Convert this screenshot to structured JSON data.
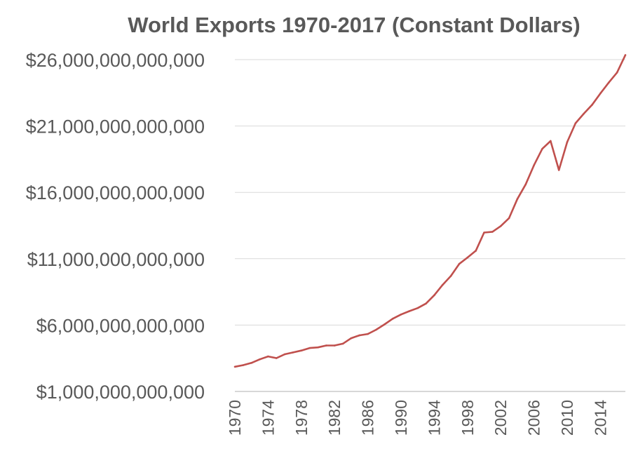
{
  "chart_data": {
    "type": "line",
    "title": "World Exports 1970-2017 (Constant Dollars)",
    "xlabel": "",
    "ylabel": "",
    "grid": true,
    "legend": "none",
    "line_color": "#c0504d",
    "ylim": [
      1000000000000,
      26000000000000
    ],
    "y_ticks": [
      1000000000000,
      6000000000000,
      11000000000000,
      16000000000000,
      21000000000000,
      26000000000000
    ],
    "y_tick_labels": [
      "$1,000,000,000,000",
      "$6,000,000,000,000",
      "$11,000,000,000,000",
      "$16,000,000,000,000",
      "$21,000,000,000,000",
      "$26,000,000,000,000"
    ],
    "x_tick_labels": [
      "1970",
      "1974",
      "1978",
      "1982",
      "1986",
      "1990",
      "1994",
      "1998",
      "2002",
      "2006",
      "2010",
      "2014"
    ],
    "series": [
      {
        "name": "World Exports",
        "x": [
          1970,
          1971,
          1972,
          1973,
          1974,
          1975,
          1976,
          1977,
          1978,
          1979,
          1980,
          1981,
          1982,
          1983,
          1984,
          1985,
          1986,
          1987,
          1988,
          1989,
          1990,
          1991,
          1992,
          1993,
          1994,
          1995,
          1996,
          1997,
          1998,
          1999,
          2000,
          2001,
          2002,
          2003,
          2004,
          2005,
          2006,
          2007,
          2008,
          2009,
          2010,
          2011,
          2012,
          2013,
          2014,
          2015,
          2016,
          2017
        ],
        "values": [
          2860000000000,
          2980000000000,
          3150000000000,
          3420000000000,
          3640000000000,
          3510000000000,
          3800000000000,
          3940000000000,
          4080000000000,
          4270000000000,
          4320000000000,
          4460000000000,
          4460000000000,
          4600000000000,
          5010000000000,
          5230000000000,
          5330000000000,
          5650000000000,
          6050000000000,
          6480000000000,
          6800000000000,
          7050000000000,
          7280000000000,
          7620000000000,
          8250000000000,
          9030000000000,
          9700000000000,
          10610000000000,
          11090000000000,
          11600000000000,
          12970000000000,
          13030000000000,
          13460000000000,
          14060000000000,
          15500000000000,
          16600000000000,
          18040000000000,
          19280000000000,
          19870000000000,
          17680000000000,
          19790000000000,
          21210000000000,
          21930000000000,
          22600000000000,
          23460000000000,
          24270000000000,
          25030000000000,
          26350000000000
        ]
      }
    ]
  }
}
